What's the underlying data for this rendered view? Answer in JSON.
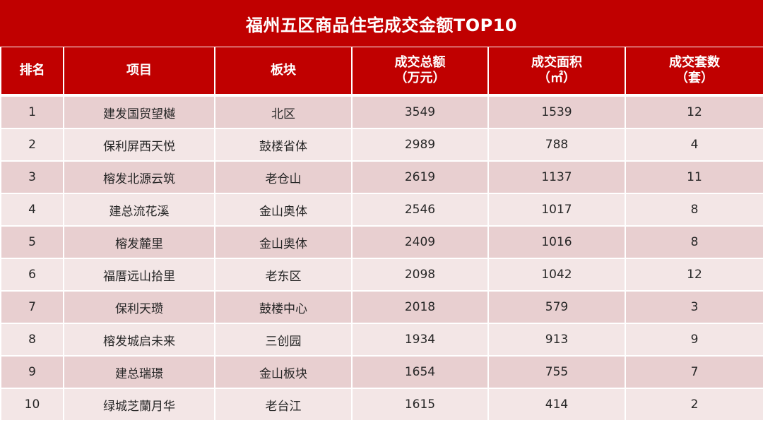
{
  "title": "福州五区商品住宅成交金额TOP10",
  "headers": {
    "rank": "排名",
    "project": "项目",
    "area": "板块",
    "amount_line1": "成交总额",
    "amount_line2": "（万元）",
    "size_line1": "成交面积",
    "size_line2": "（㎡）",
    "units_line1": "成交套数",
    "units_line2": "（套）"
  },
  "colors": {
    "header_bg": "#c00000",
    "row_odd": "#e8cfd0",
    "row_even": "#f3e6e6"
  },
  "chart_data": {
    "type": "table",
    "title": "福州五区商品住宅成交金额TOP10",
    "columns": [
      "排名",
      "项目",
      "板块",
      "成交总额（万元）",
      "成交面积（㎡）",
      "成交套数（套）"
    ],
    "rows": [
      [
        "1",
        "建发国贸望樾",
        "北区",
        "3549",
        "1539",
        "12"
      ],
      [
        "2",
        "保利屏西天悦",
        "鼓楼省体",
        "2989",
        "788",
        "4"
      ],
      [
        "3",
        "榕发北源云筑",
        "老仓山",
        "2619",
        "1137",
        "11"
      ],
      [
        "4",
        "建总流花溪",
        "金山奥体",
        "2546",
        "1017",
        "8"
      ],
      [
        "5",
        "榕发麓里",
        "金山奥体",
        "2409",
        "1016",
        "8"
      ],
      [
        "6",
        "福厝远山拾里",
        "老东区",
        "2098",
        "1042",
        "12"
      ],
      [
        "7",
        "保利天瓒",
        "鼓楼中心",
        "2018",
        "579",
        "3"
      ],
      [
        "8",
        "榕发城启未来",
        "三创园",
        "1934",
        "913",
        "9"
      ],
      [
        "9",
        "建总瑞璟",
        "金山板块",
        "1654",
        "755",
        "7"
      ],
      [
        "10",
        "绿城芝蘭月华",
        "老台江",
        "1615",
        "414",
        "2"
      ]
    ]
  }
}
